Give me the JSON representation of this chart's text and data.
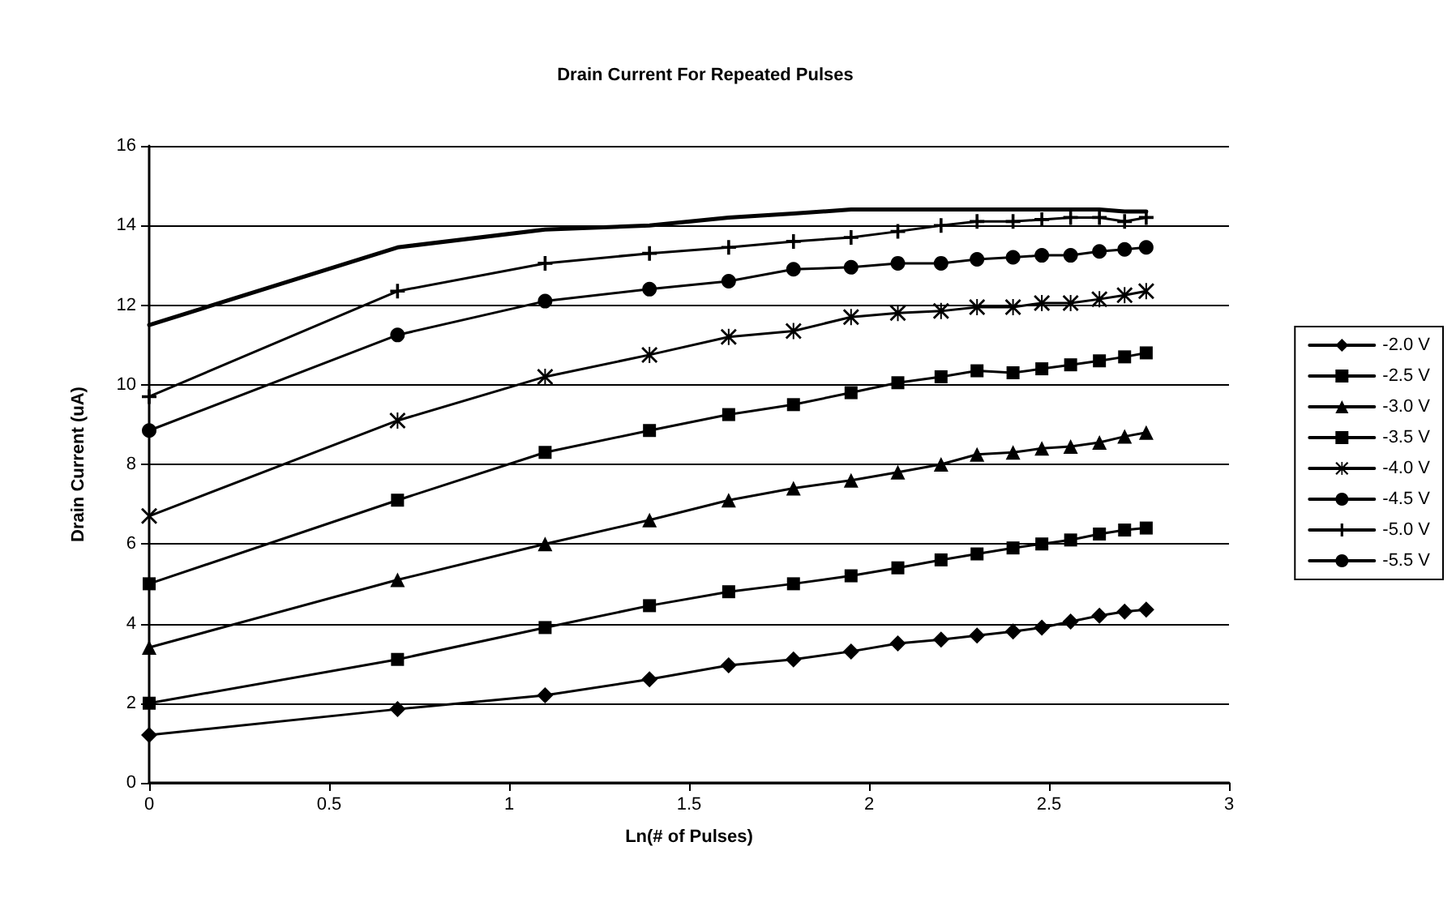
{
  "chart_data": {
    "type": "line",
    "title": "Drain Current For Repeated Pulses",
    "xlabel": "Ln(# of Pulses)",
    "ylabel": "Drain Current (uA)",
    "x": [
      0,
      0.69,
      1.1,
      1.39,
      1.61,
      1.79,
      1.95,
      2.08,
      2.2,
      2.3,
      2.4,
      2.48,
      2.56,
      2.64,
      2.71,
      2.77
    ],
    "xlim": [
      0,
      3
    ],
    "xticks": [
      0,
      0.5,
      1,
      1.5,
      2,
      2.5,
      3
    ],
    "ylim": [
      0,
      16
    ],
    "yticks": [
      0,
      2,
      4,
      6,
      8,
      10,
      12,
      14,
      16
    ],
    "grid": "y",
    "legend": "right",
    "line_style": "solid",
    "series": [
      {
        "name": "-2.0 V",
        "color": "#000000",
        "marker": "diamond",
        "values": [
          1.2,
          1.85,
          2.2,
          2.6,
          2.95,
          3.1,
          3.3,
          3.5,
          3.6,
          3.7,
          3.8,
          3.9,
          4.05,
          4.2,
          4.3,
          4.35
        ]
      },
      {
        "name": "-2.5 V",
        "color": "#000000",
        "marker": "square",
        "values": [
          2.0,
          3.1,
          3.9,
          4.45,
          4.8,
          5.0,
          5.2,
          5.4,
          5.6,
          5.75,
          5.9,
          6.0,
          6.1,
          6.25,
          6.35,
          6.4
        ]
      },
      {
        "name": "-3.0 V",
        "color": "#000000",
        "marker": "triangle",
        "values": [
          3.4,
          5.1,
          6.0,
          6.6,
          7.1,
          7.4,
          7.6,
          7.8,
          8.0,
          8.25,
          8.3,
          8.4,
          8.45,
          8.55,
          8.7,
          8.8
        ]
      },
      {
        "name": "-3.5 V",
        "color": "#000000",
        "marker": "square",
        "values": [
          5.0,
          7.1,
          8.3,
          8.85,
          9.25,
          9.5,
          9.8,
          10.05,
          10.2,
          10.35,
          10.3,
          10.4,
          10.5,
          10.6,
          10.7,
          10.8
        ]
      },
      {
        "name": "-4.0 V",
        "color": "#000000",
        "marker": "star",
        "values": [
          6.7,
          9.1,
          10.2,
          10.75,
          11.2,
          11.35,
          11.7,
          11.8,
          11.85,
          11.95,
          11.95,
          12.05,
          12.05,
          12.15,
          12.25,
          12.35
        ]
      },
      {
        "name": "-4.5 V",
        "color": "#000000",
        "marker": "circle",
        "values": [
          8.85,
          11.25,
          12.1,
          12.4,
          12.6,
          12.9,
          12.95,
          13.05,
          13.05,
          13.15,
          13.2,
          13.25,
          13.25,
          13.35,
          13.4,
          13.45
        ]
      },
      {
        "name": "-5.0 V",
        "color": "#000000",
        "marker": "cross",
        "values": [
          9.7,
          12.35,
          13.05,
          13.3,
          13.45,
          13.6,
          13.7,
          13.85,
          14.0,
          14.1,
          14.1,
          14.15,
          14.2,
          14.2,
          14.1,
          14.2
        ]
      },
      {
        "name": "-5.5 V",
        "color": "#000000",
        "marker": "none",
        "values": [
          11.5,
          13.45,
          13.9,
          14.0,
          14.2,
          14.3,
          14.4,
          14.4,
          14.4,
          14.4,
          14.4,
          14.4,
          14.4,
          14.4,
          14.35,
          14.35
        ]
      }
    ]
  }
}
